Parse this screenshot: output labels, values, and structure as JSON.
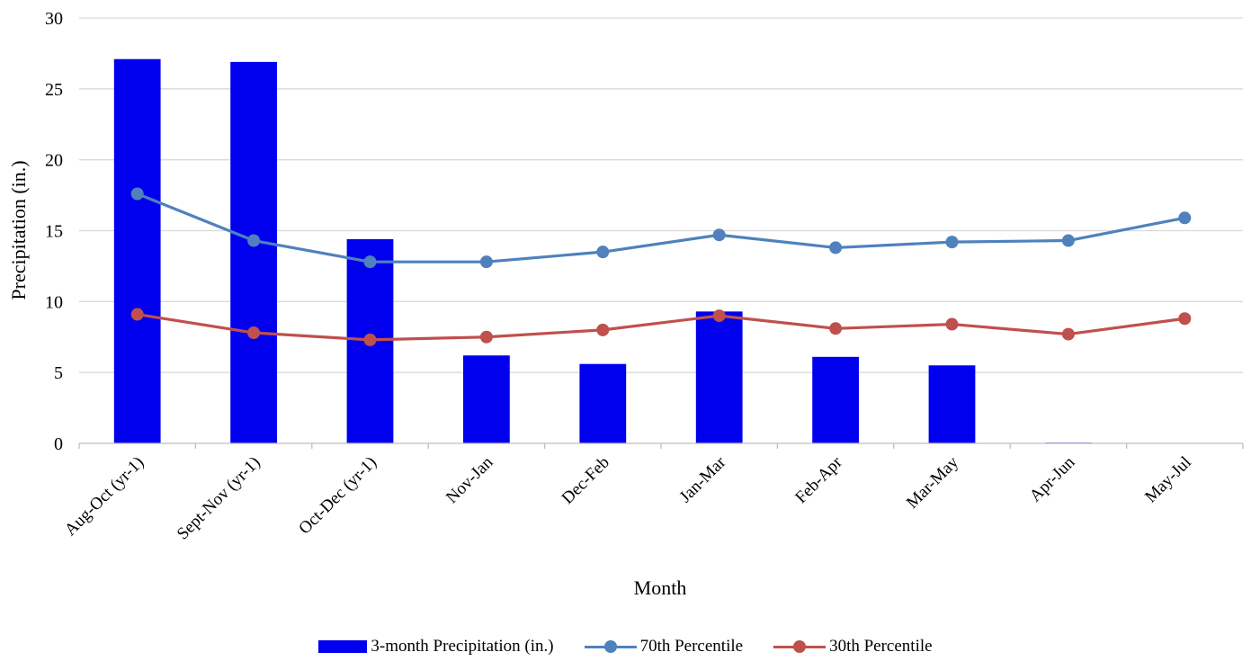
{
  "chart_data": {
    "type": "bar",
    "categories": [
      "Aug-Oct (yr-1)",
      "Sept-Nov (yr-1)",
      "Oct-Dec (yr-1)",
      "Nov-Jan",
      "Dec-Feb",
      "Jan-Mar",
      "Feb-Apr",
      "Mar-May",
      "Apr-Jun",
      "May-Jul"
    ],
    "series": [
      {
        "name": "3-month Precipitation (in.)",
        "type": "bar",
        "color": "#0000ee",
        "values": [
          27.1,
          26.9,
          14.4,
          6.2,
          5.6,
          9.3,
          6.1,
          5.5,
          0.05,
          0
        ]
      },
      {
        "name": "70th Percentile",
        "type": "line",
        "color": "#4f81bd",
        "values": [
          17.6,
          14.3,
          12.8,
          12.8,
          13.5,
          14.7,
          13.8,
          14.2,
          14.3,
          15.9
        ]
      },
      {
        "name": "30th Percentile",
        "type": "line",
        "color": "#c0504d",
        "values": [
          9.1,
          7.8,
          7.3,
          7.5,
          8.0,
          9.0,
          8.1,
          8.4,
          7.7,
          8.8
        ]
      }
    ],
    "yticks": [
      "0",
      "5",
      "10",
      "15",
      "20",
      "25",
      "30"
    ],
    "xlabel": "Month",
    "ylabel": "Precipitation (in.)",
    "ylim": [
      0,
      30
    ],
    "grid": true,
    "legend": "bottom"
  }
}
